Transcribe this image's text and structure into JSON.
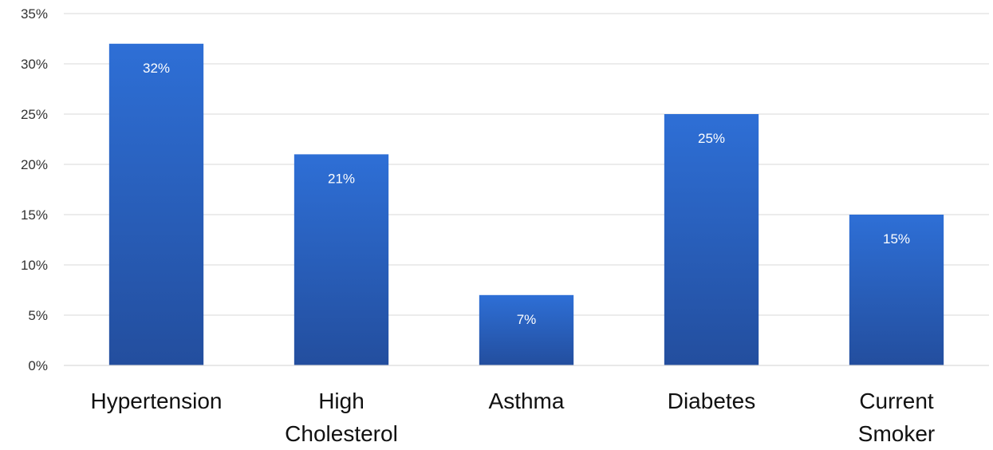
{
  "chart_data": {
    "type": "bar",
    "categories": [
      [
        "Hypertension"
      ],
      [
        "High",
        "Cholesterol"
      ],
      [
        "Asthma"
      ],
      [
        "Diabetes"
      ],
      [
        "Current",
        "Smoker"
      ]
    ],
    "values": [
      32,
      21,
      7,
      25,
      15
    ],
    "data_labels": [
      "32%",
      "21%",
      "7%",
      "25%",
      "15%"
    ],
    "ylim": [
      0,
      35
    ],
    "yticks": [
      0,
      5,
      10,
      15,
      20,
      25,
      30,
      35
    ],
    "ytick_labels": [
      "0%",
      "5%",
      "10%",
      "15%",
      "20%",
      "25%",
      "30%",
      "35%"
    ],
    "grid": true,
    "legend": "none",
    "bar_color_top": "#2e6fd6",
    "bar_color_bottom": "#234e9e",
    "title": "",
    "xlabel": "",
    "ylabel": ""
  }
}
